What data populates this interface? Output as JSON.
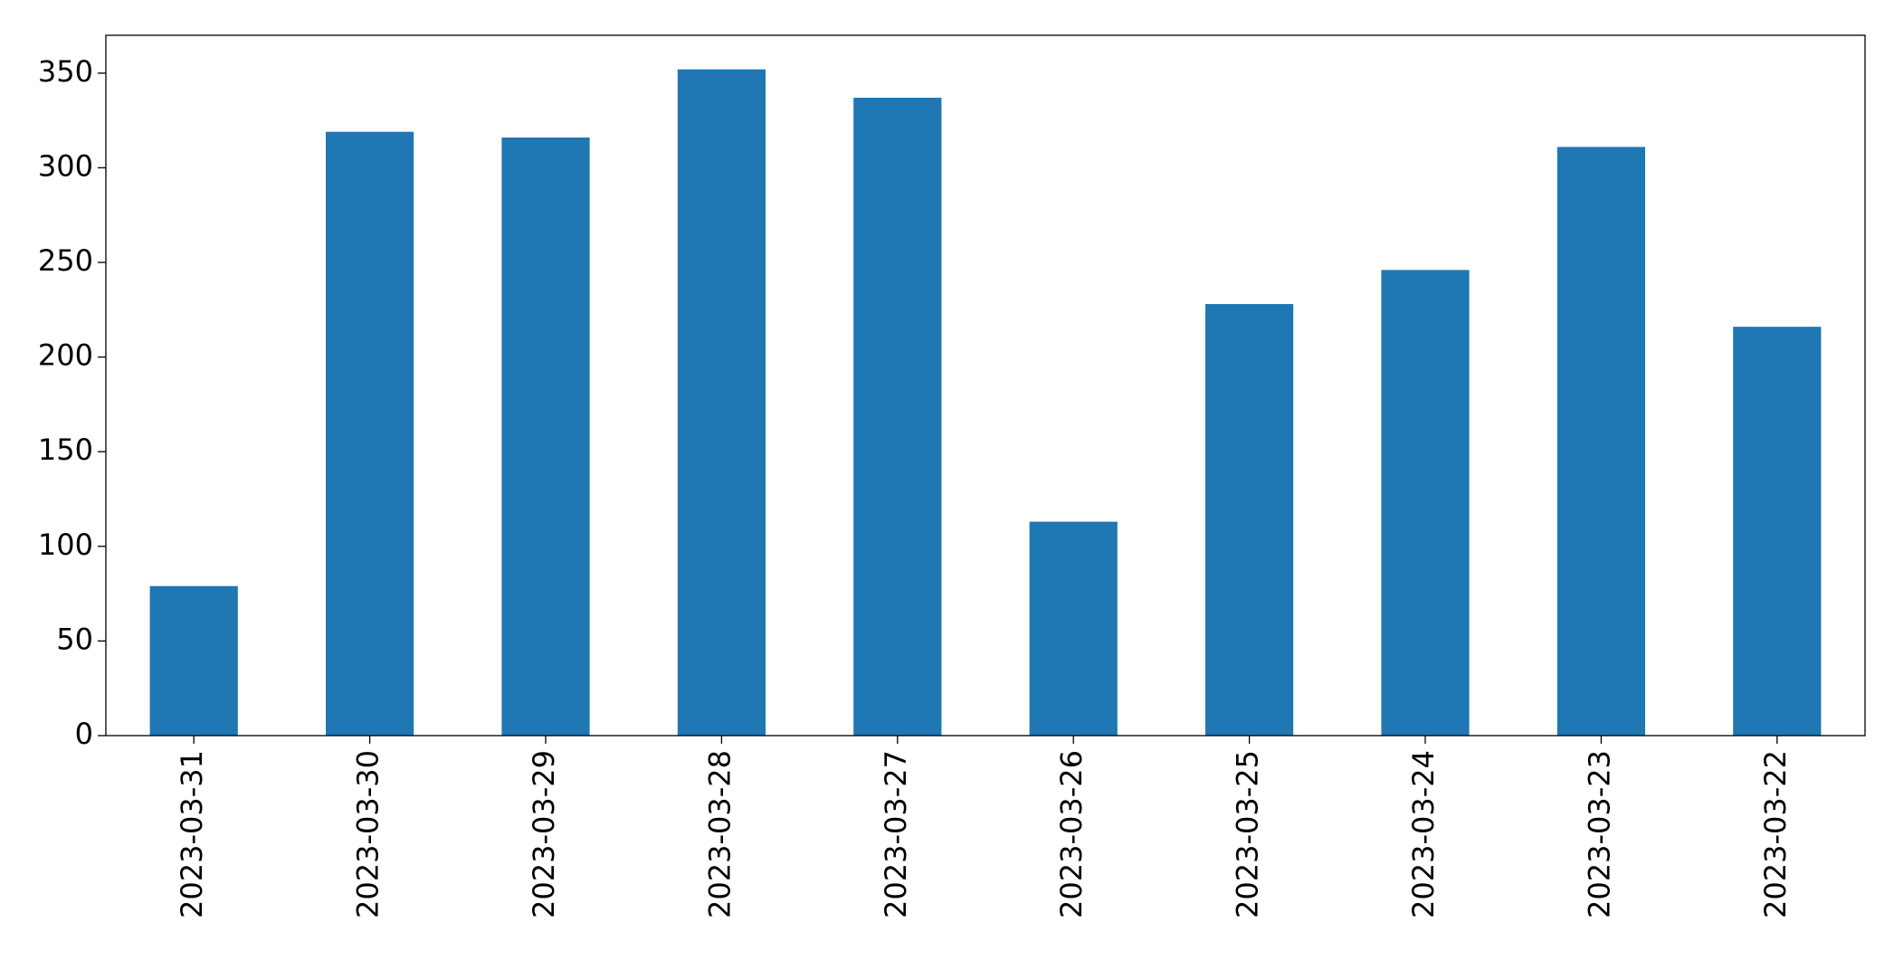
{
  "chart_data": {
    "type": "bar",
    "categories": [
      "2023-03-31",
      "2023-03-30",
      "2023-03-29",
      "2023-03-28",
      "2023-03-27",
      "2023-03-26",
      "2023-03-25",
      "2023-03-24",
      "2023-03-23",
      "2023-03-22"
    ],
    "values": [
      79,
      319,
      316,
      352,
      337,
      113,
      228,
      246,
      311,
      216
    ],
    "color": "#1f77b4",
    "ylim": [
      0,
      370
    ],
    "yticks": [
      0,
      50,
      100,
      150,
      200,
      250,
      300,
      350
    ],
    "grid": false
  }
}
